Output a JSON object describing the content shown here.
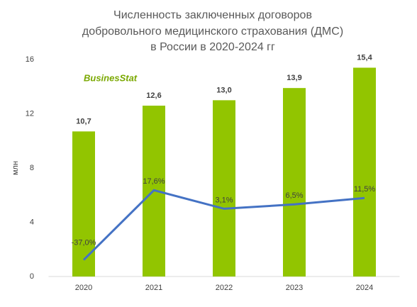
{
  "chart_data": {
    "type": "bar",
    "title": [
      "Численность заключенных договоров",
      "добровольного медицинского страхования (ДМС)",
      "в России в 2020-2024 гг"
    ],
    "logo": "BusinesStat",
    "ylabel": "млн",
    "categories": [
      "2020",
      "2021",
      "2022",
      "2023",
      "2024"
    ],
    "series": [
      {
        "type": "bar",
        "color": "#92c500",
        "values": [
          10.7,
          12.6,
          13.0,
          13.9,
          15.4
        ],
        "value_labels": [
          "10,7",
          "12,6",
          "13,0",
          "13,9",
          "15,4"
        ]
      },
      {
        "type": "line",
        "axis": "y2",
        "color": "#4472c4",
        "values": [
          -37.0,
          17.6,
          3.1,
          6.5,
          11.5
        ],
        "value_labels": [
          "-37,0%",
          "17,6%",
          "3,1%",
          "6,5%",
          "11,5%"
        ]
      }
    ],
    "ylim": [
      0,
      16
    ],
    "yticks": [
      0,
      4,
      8,
      12,
      16
    ],
    "y2lim": [
      -50,
      120
    ],
    "grid": false
  }
}
